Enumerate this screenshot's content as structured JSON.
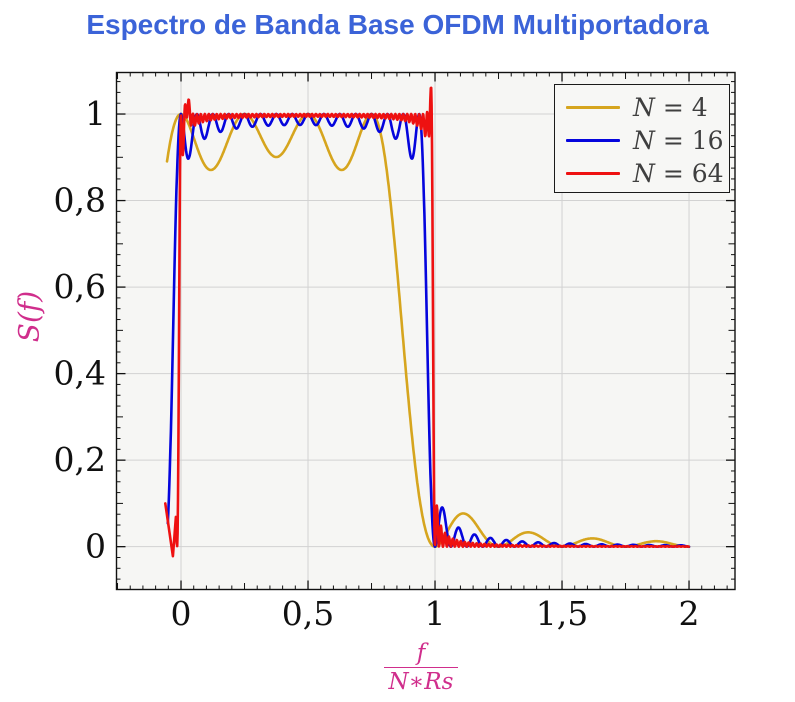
{
  "chart_data": {
    "type": "line",
    "title": "Espectro de Banda Base OFDM Multiportadora",
    "title_color": "#3B63D8",
    "ylabel": "S(f)",
    "xlabel_numerator": "f",
    "xlabel_denominator": "N∗Rs",
    "axis_label_color": "#D02E8C",
    "xlim": [
      -0.254,
      2.181
    ],
    "ylim": [
      -0.099,
      1.096
    ],
    "x_ticks": {
      "values": [
        0,
        0.5,
        1,
        1.5,
        2
      ],
      "labels": [
        "0",
        "0,5",
        "1",
        "1,5",
        "2"
      ],
      "minor_step": 0.05
    },
    "y_ticks": {
      "values": [
        0,
        0.2,
        0.4,
        0.6,
        0.8,
        1
      ],
      "labels": [
        "0",
        "0,2",
        "0,4",
        "0,6",
        "0,8",
        "1"
      ],
      "minor_step": 0.025
    },
    "grid": true,
    "plot_bg": "#f6f6f4",
    "grid_color": "#d2d2d2",
    "frame_color": "#111111",
    "tick_label_color": "#111111",
    "model": "S(x) = sum_{k=0}^{N-1} sinc^2(N*x - k),  x = f/(N*Rs), plotted for x in [-0.05, 2]",
    "series": [
      {
        "label": "N = 4",
        "label_var": "N",
        "label_rest": " = 4",
        "N": 4,
        "color": "#D6A51E",
        "x_start": -0.055,
        "x_end": 2.0,
        "step": 0.0025,
        "prefix_points": [],
        "bumps": [],
        "key_points": [
          [
            -0.05,
            0.89
          ],
          [
            0,
            1.0
          ],
          [
            0.125,
            0.87
          ],
          [
            0.25,
            1.0
          ],
          [
            0.375,
            0.87
          ],
          [
            0.5,
            1.0
          ],
          [
            0.625,
            0.87
          ],
          [
            0.75,
            1.0
          ],
          [
            0.83,
            0.8
          ],
          [
            0.89,
            0.5
          ],
          [
            0.94,
            0.2
          ],
          [
            1.0,
            0.02
          ],
          [
            1.11,
            0.07
          ],
          [
            1.36,
            0.035
          ],
          [
            1.61,
            0.022
          ],
          [
            1.86,
            0.015
          ],
          [
            2.0,
            0.01
          ]
        ]
      },
      {
        "label": "N = 16",
        "label_var": "N",
        "label_rest": " = 16",
        "N": 16,
        "color": "#0505DD",
        "x_start": -0.052,
        "x_end": 2.0,
        "step": 0.002,
        "prefix_points": [],
        "bumps": [],
        "key_points": [
          [
            -0.05,
            0.08
          ],
          [
            0,
            0.99
          ],
          [
            0.031,
            0.89
          ],
          [
            0.0625,
            1.0
          ],
          [
            0.5,
            0.97
          ],
          [
            0.53,
            0.94
          ],
          [
            0.906,
            0.9
          ],
          [
            0.9375,
            1.0
          ],
          [
            0.978,
            0.5
          ],
          [
            1.0,
            0.03
          ],
          [
            1.03,
            0.09
          ],
          [
            1.09,
            0.05
          ],
          [
            1.22,
            0.03
          ],
          [
            1.5,
            0.01
          ],
          [
            2.0,
            0.005
          ]
        ]
      },
      {
        "label": "N = 64",
        "label_var": "N",
        "label_rest": " = 64",
        "N": 64,
        "color": "#EE1111",
        "x_start": -0.02,
        "x_end": 2.0,
        "step": 0.0016,
        "prefix_points": [
          [
            -0.062,
            0.1
          ],
          [
            -0.032,
            -0.022
          ]
        ],
        "bumps": [
          {
            "c": 0.025,
            "s": 0.011,
            "a": 0.045
          },
          {
            "c": 0.982,
            "s": 0.008,
            "a": 0.07
          }
        ],
        "key_points": [
          [
            -0.05,
            0.0
          ],
          [
            0,
            0.5
          ],
          [
            0.008,
            0.91
          ],
          [
            0.025,
            1.03
          ],
          [
            0.1,
            1.0
          ],
          [
            0.5,
            1.0
          ],
          [
            0.9,
            1.0
          ],
          [
            0.96,
            0.99
          ],
          [
            0.982,
            1.04
          ],
          [
            1.0,
            0.05
          ],
          [
            1.01,
            0.09
          ],
          [
            1.1,
            0.02
          ],
          [
            1.5,
            0.005
          ],
          [
            2.0,
            0.003
          ]
        ]
      }
    ],
    "legend": {
      "position": "top-right",
      "text_color": "#3f3f3f",
      "bg": "#f7f7f5",
      "border": "#1a1a1a"
    },
    "key_values": {
      "plateau": 1.0,
      "n4_ripple_min": 0.87,
      "n16_ripple_min": 0.94,
      "n64_edge_overshoot": 1.04,
      "band_edge_x": 1.0
    }
  }
}
